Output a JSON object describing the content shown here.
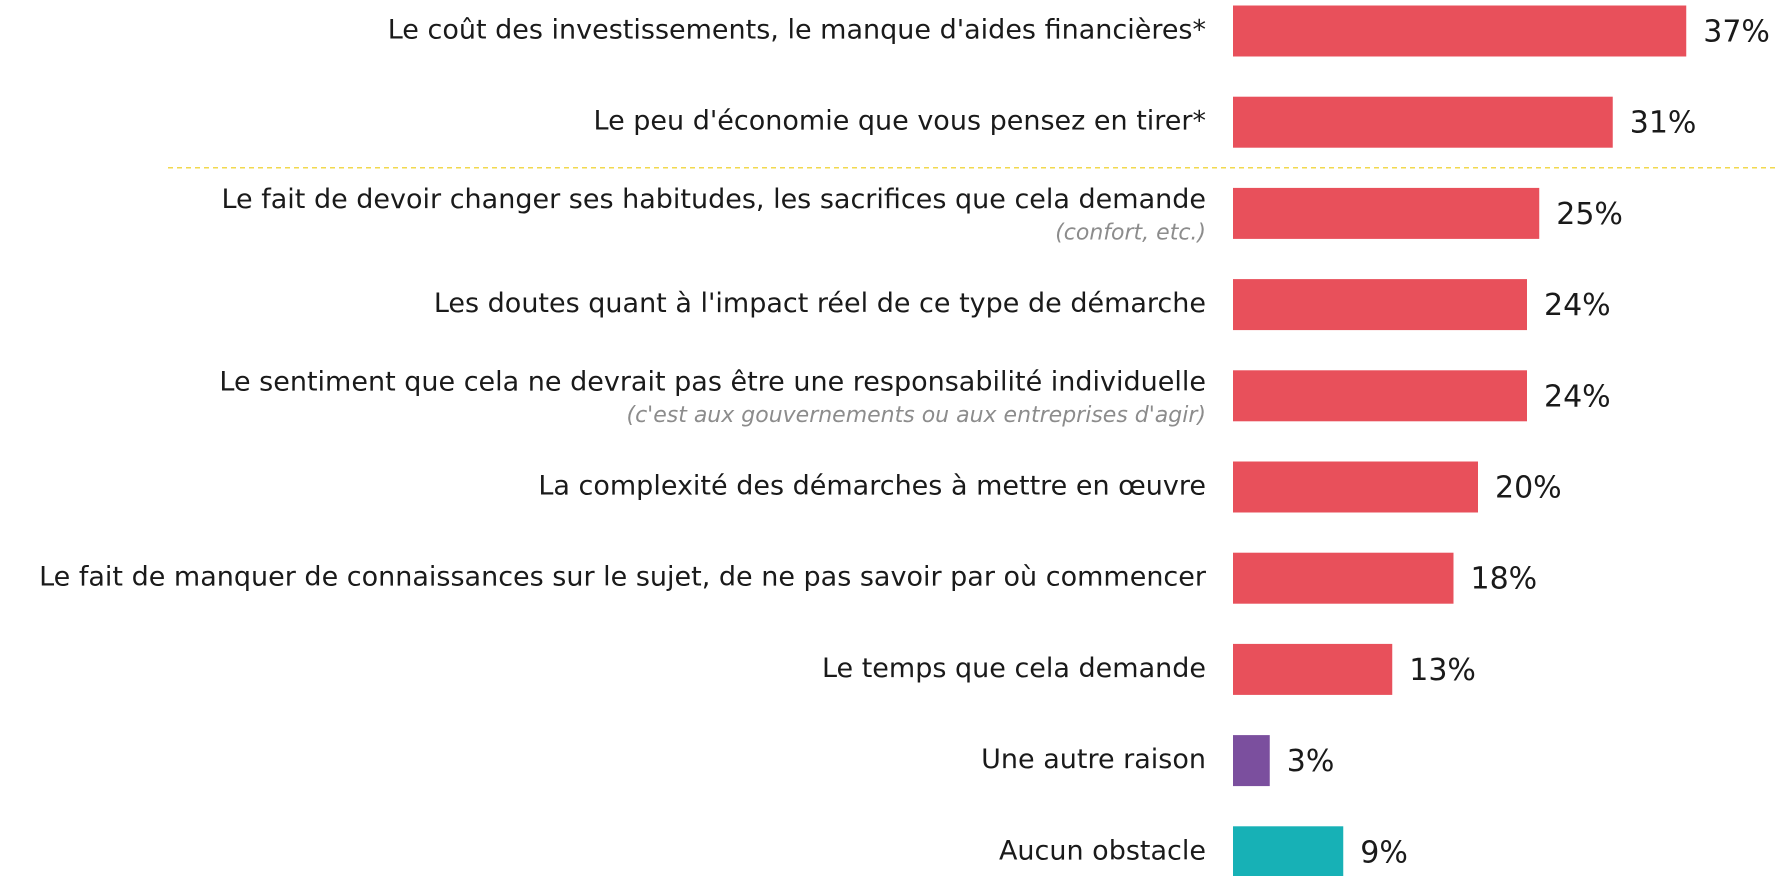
{
  "chart_data": {
    "type": "bar",
    "orientation": "horizontal",
    "categories": [
      "Le coût des investissements, le manque d'aides financières*",
      "Le peu d'économie que vous pensez en tirer*",
      "Le fait de devoir changer ses habitudes, les sacrifices que cela demande",
      "Les doutes quant à l'impact réel de ce type de démarche",
      "Le sentiment que cela ne devrait pas être une responsabilité individuelle",
      "La complexité des démarches à mettre en œuvre",
      "Le fait de manquer de connaissances sur le sujet, de ne pas savoir par où commencer",
      "Le temps que cela demande",
      "Une autre raison",
      "Aucun obstacle"
    ],
    "sublabels": [
      null,
      null,
      "(confort, etc.)",
      null,
      "(c'est aux gouvernements ou aux entreprises d'agir)",
      null,
      null,
      null,
      null,
      null
    ],
    "values": [
      37,
      31,
      25,
      24,
      24,
      20,
      18,
      13,
      3,
      9
    ],
    "value_labels": [
      "37%",
      "31%",
      "25%",
      "24%",
      "24%",
      "20%",
      "18%",
      "13%",
      "3%",
      "9%"
    ],
    "colors": [
      "#e8505b",
      "#e8505b",
      "#e8505b",
      "#e8505b",
      "#e8505b",
      "#e8505b",
      "#e8505b",
      "#e8505b",
      "#7b4f9e",
      "#17b1b6"
    ],
    "separator_color": "#f2d94e"
  }
}
